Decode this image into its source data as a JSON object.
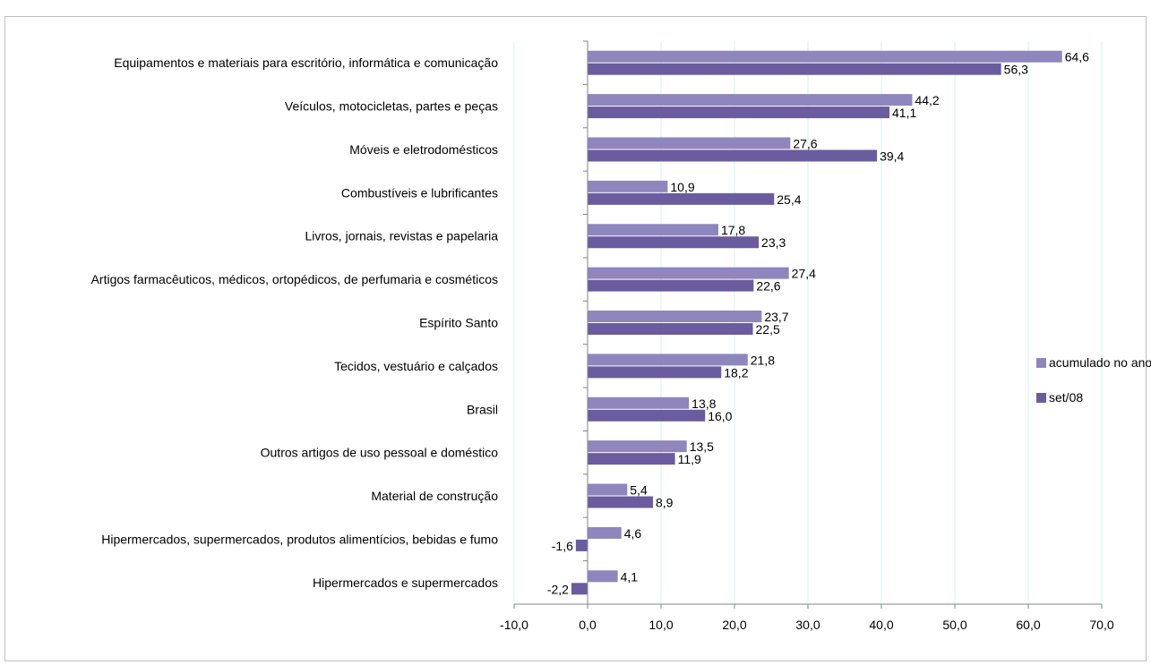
{
  "chart_data": {
    "type": "bar",
    "orientation": "horizontal",
    "categories": [
      "Equipamentos e materiais para escritório, informática e comunicação",
      "Veículos, motocicletas, partes e peças",
      "Móveis e eletrodomésticos",
      "Combustíveis e lubrificantes",
      "Livros, jornais, revistas e papelaria",
      "Artigos farmacêuticos, médicos, ortopédicos, de perfumaria e cosméticos",
      "Espírito Santo",
      "Tecidos, vestuário e calçados",
      "Brasil",
      "Outros artigos de uso pessoal e doméstico",
      "Material de construção",
      "Hipermercados, supermercados, produtos alimentícios, bebidas e fumo",
      "Hipermercados e supermercados"
    ],
    "series": [
      {
        "name": "acumulado no ano",
        "color": "#8e86bd",
        "values": [
          64.6,
          44.2,
          27.6,
          10.9,
          17.8,
          27.4,
          23.7,
          21.8,
          13.8,
          13.5,
          5.4,
          4.6,
          4.1
        ],
        "labels": [
          "64,6",
          "44,2",
          "27,6",
          "10,9",
          "17,8",
          "27,4",
          "23,7",
          "21,8",
          "13,8",
          "13,5",
          "5,4",
          "4,6",
          "4,1"
        ]
      },
      {
        "name": "set/08",
        "color": "#6a5c9e",
        "values": [
          56.3,
          41.1,
          39.4,
          25.4,
          23.3,
          22.6,
          22.5,
          18.2,
          16.0,
          11.9,
          8.9,
          -1.6,
          -2.2
        ],
        "labels": [
          "56,3",
          "41,1",
          "39,4",
          "25,4",
          "23,3",
          "22,6",
          "22,5",
          "18,2",
          "16,0",
          "11,9",
          "8,9",
          "-1,6",
          "-2,2"
        ]
      }
    ],
    "xlim": [
      -10,
      70
    ],
    "x_ticks": [
      -10,
      0,
      10,
      20,
      30,
      40,
      50,
      60,
      70
    ],
    "x_tick_labels": [
      "-10,0",
      "0,0",
      "10,0",
      "20,0",
      "30,0",
      "40,0",
      "50,0",
      "60,0",
      "70,0"
    ],
    "grid": "vertical",
    "grid_color": "#d9f2f2",
    "legend_position": "right",
    "title": "",
    "xlabel": "",
    "ylabel": ""
  }
}
